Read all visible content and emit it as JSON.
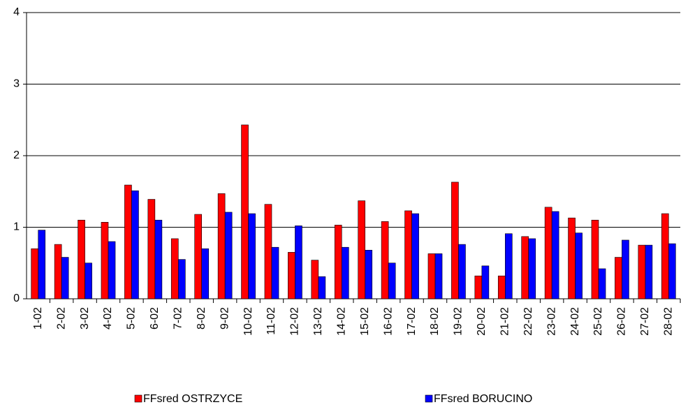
{
  "chart_data": {
    "type": "bar",
    "categories": [
      "1-02",
      "2-02",
      "3-02",
      "4-02",
      "5-02",
      "6-02",
      "7-02",
      "8-02",
      "9-02",
      "10-02",
      "11-02",
      "12-02",
      "13-02",
      "14-02",
      "15-02",
      "16-02",
      "17-02",
      "18-02",
      "19-02",
      "20-02",
      "21-02",
      "22-02",
      "23-02",
      "24-02",
      "25-02",
      "26-02",
      "27-02",
      "28-02"
    ],
    "series": [
      {
        "name": "FFsred OSTRZYCE",
        "color": "#ff0000",
        "values": [
          0.7,
          0.76,
          1.1,
          1.07,
          1.59,
          1.39,
          0.84,
          1.18,
          1.47,
          2.43,
          1.32,
          0.65,
          0.54,
          1.03,
          1.37,
          1.08,
          1.23,
          0.63,
          1.63,
          0.32,
          0.32,
          0.87,
          1.28,
          1.13,
          1.1,
          0.58,
          0.75,
          1.19
        ]
      },
      {
        "name": "FFsred BORUCINO",
        "color": "#0000ff",
        "values": [
          0.96,
          0.58,
          0.5,
          0.8,
          1.51,
          1.1,
          0.55,
          0.7,
          1.21,
          1.19,
          0.72,
          1.02,
          0.31,
          0.72,
          0.68,
          0.5,
          1.19,
          0.63,
          0.76,
          0.46,
          0.91,
          0.84,
          1.22,
          0.92,
          0.42,
          0.82,
          0.75,
          0.77
        ]
      }
    ],
    "ylim": [
      0,
      4
    ],
    "yticks": [
      0,
      1,
      2,
      3,
      4
    ],
    "grid": true,
    "legend": "bottom"
  }
}
